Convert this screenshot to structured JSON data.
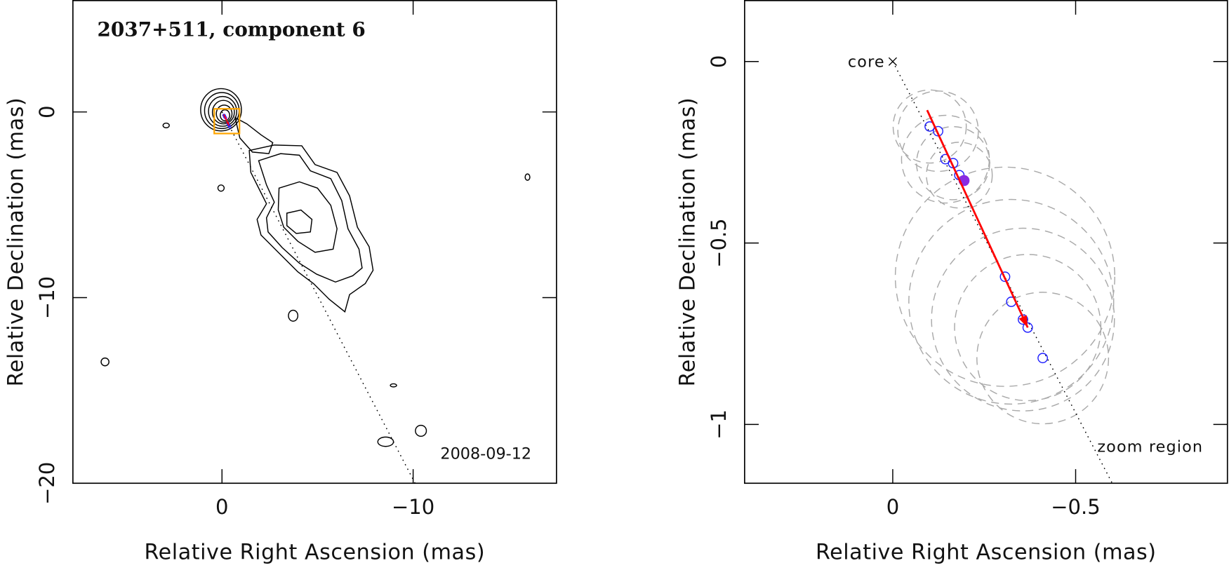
{
  "chart_data": [
    {
      "type": "contour",
      "title": "2037+511, component 6",
      "date": "2008-09-12",
      "xlabel": "Relative Right Ascension (mas)",
      "ylabel": "Relative Declination (mas)",
      "xlim": [
        7.8,
        -17.5
      ],
      "ylim": [
        -20,
        6
      ],
      "xticks": [
        0,
        {
          "value": -10,
          "label": "−10"
        }
      ],
      "yticks": [
        0,
        {
          "value": -10,
          "label": "−10"
        },
        {
          "value": -20,
          "label": "−20"
        }
      ],
      "jet_line": {
        "x": [
          0,
          -10.1
        ],
        "y": [
          0,
          -20
        ]
      },
      "zoom_color": "#ffa500"
    },
    {
      "type": "scatter",
      "annotation": "zoom region",
      "xlabel": "Relative Right Ascension (mas)",
      "ylabel": "Relative Declination (mas)",
      "xlim": [
        0.405,
        -0.915
      ],
      "ylim": [
        -1.162,
        0.168
      ],
      "xticks": [
        0,
        {
          "value": -0.5,
          "label": "−0.5"
        }
      ],
      "yticks": [
        0,
        {
          "value": -0.5,
          "label": "−0.5"
        },
        {
          "value": -1,
          "label": "−1"
        }
      ],
      "core": {
        "label": "core",
        "x": 0,
        "y": 0
      },
      "components": {
        "color": "#2222ff",
        "x": [
          -0.101,
          -0.124,
          -0.144,
          -0.165,
          -0.182,
          -0.307,
          -0.324,
          -0.356,
          -0.369,
          -0.41
        ],
        "y": [
          -0.179,
          -0.192,
          -0.269,
          -0.28,
          -0.313,
          -0.593,
          -0.662,
          -0.711,
          -0.733,
          -0.817
        ],
        "sizes": [
          0.1,
          0.11,
          0.12,
          0.1,
          0.09,
          0.3,
          0.28,
          0.25,
          0.2,
          0.18
        ]
      },
      "current": {
        "color": "#8a2be2",
        "x": -0.195,
        "y": -0.328
      },
      "arrow": {
        "color": "#ff0000",
        "x": [
          -0.094,
          -0.369
        ],
        "y": [
          -0.134,
          -0.733
        ]
      },
      "jet_line": {
        "x": [
          0,
          -0.6
        ],
        "y": [
          0,
          -1.162
        ]
      }
    }
  ]
}
